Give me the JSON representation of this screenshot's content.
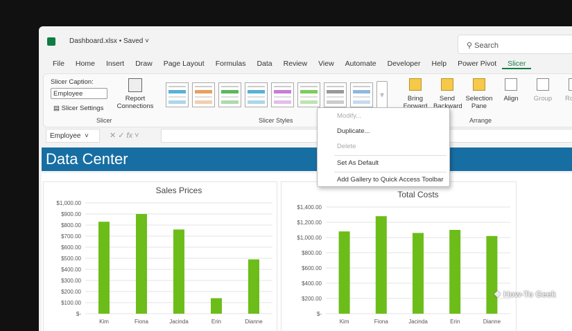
{
  "title_bar": {
    "file": "Dashboard.xlsx • Saved ˅",
    "search_placeholder": "Search"
  },
  "tabs": [
    "File",
    "Home",
    "Insert",
    "Draw",
    "Page Layout",
    "Formulas",
    "Data",
    "Review",
    "View",
    "Automate",
    "Developer",
    "Help",
    "Power Pivot",
    "Slicer"
  ],
  "active_tab": "Slicer",
  "ribbon": {
    "slicer_caption_label": "Slicer Caption:",
    "slicer_caption_value": "Employee",
    "slicer_settings": "Slicer Settings",
    "report_connections": "Report Connections",
    "slicer_group": "Slicer",
    "styles_group": "Slicer Styles",
    "style_colors": [
      "#5ab0d8",
      "#e8a060",
      "#5cb85c",
      "#5ab0d8",
      "#c77dd6",
      "#7ccc5c",
      "#999999",
      "#8fb8e0"
    ],
    "arrange": [
      "Bring Forward",
      "Send Backward",
      "Selection Pane",
      "Align",
      "Group",
      "Rotate"
    ],
    "arrange_group": "Arrange"
  },
  "formula_bar": {
    "name_box": "Employee",
    "fx": "fx"
  },
  "banner": "Data Center",
  "context_menu": [
    {
      "label": "Modify...",
      "disabled": true
    },
    {
      "label": "Duplicate...",
      "disabled": false
    },
    {
      "label": "Delete",
      "disabled": true
    },
    {
      "label": "Set As Default",
      "disabled": false
    },
    {
      "label": "Add Gallery to Quick Access Toolbar",
      "disabled": false
    }
  ],
  "watermark": "How-To Geek",
  "chart_data": [
    {
      "type": "bar",
      "title": "Sales Prices",
      "categories": [
        "Kim",
        "Fiona",
        "Jacinda",
        "Erin",
        "Dianne"
      ],
      "values": [
        830,
        900,
        760,
        140,
        490
      ],
      "ylim": [
        0,
        1000
      ],
      "yticks": [
        "$-",
        "$100.00",
        "$200.00",
        "$300.00",
        "$400.00",
        "$500.00",
        "$600.00",
        "$700.00",
        "$800.00",
        "$900.00",
        "$1,000.00"
      ],
      "grid": true,
      "color": "#6cbd1a"
    },
    {
      "type": "bar",
      "title": "Total Costs",
      "categories": [
        "Kim",
        "Fiona",
        "Jacinda",
        "Erin",
        "Dianne"
      ],
      "values": [
        1080,
        1280,
        1060,
        1100,
        1020
      ],
      "ylim": [
        0,
        1400
      ],
      "yticks": [
        "$-",
        "$200.00",
        "$400.00",
        "$600.00",
        "$800.00",
        "$1,000.00",
        "$1,200.00",
        "$1,400.00"
      ],
      "grid": true,
      "color": "#6cbd1a"
    }
  ]
}
